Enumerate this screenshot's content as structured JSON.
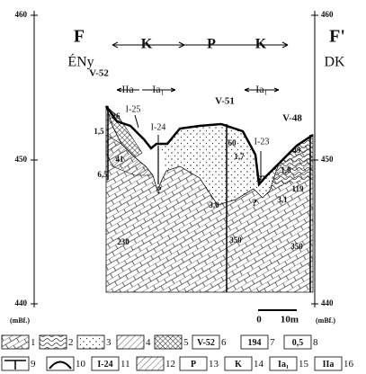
{
  "axis_left": {
    "ticks": [
      "460",
      "450",
      "440"
    ],
    "unit": "(mBf.)"
  },
  "axis_right": {
    "ticks": [
      "460",
      "450",
      "440"
    ],
    "unit": "(mBf.)"
  },
  "section": {
    "start": "F",
    "start_direction": "ÉNy",
    "end": "F'",
    "end_direction": "DK"
  },
  "zones": [
    "K",
    "P",
    "K"
  ],
  "units": [
    "IIa",
    "Ia₁",
    "Ia₁"
  ],
  "wells": [
    {
      "name": "V-52",
      "values": [
        "1,5",
        "26",
        "41",
        "6,5",
        "230"
      ]
    },
    {
      "name": "V-51",
      "values": [
        "60",
        "1,7",
        "67",
        "3,0",
        "350"
      ]
    },
    {
      "name": "V-48",
      "values": [
        "49",
        "1,8",
        "119",
        "3,1",
        "350"
      ]
    }
  ],
  "sinkholes": [
    "I-25",
    "I-24",
    "I-23"
  ],
  "unknown": [
    "?",
    "?"
  ],
  "scale": [
    "0",
    "10m"
  ],
  "legend": [
    {
      "number": "1"
    },
    {
      "number": "2"
    },
    {
      "number": "3"
    },
    {
      "number": "4"
    },
    {
      "number": "5"
    },
    {
      "symbol": "V-52",
      "number": "6"
    },
    {
      "symbol": "194",
      "number": "7"
    },
    {
      "symbol": "0,5",
      "number": "8"
    },
    {
      "number": "9"
    },
    {
      "number": "10"
    },
    {
      "symbol": "I-24",
      "number": "11"
    },
    {
      "number": "12"
    },
    {
      "symbol": "P",
      "number": "13"
    },
    {
      "symbol": "K",
      "number": "14"
    },
    {
      "symbol": "Ia₁",
      "number": "15"
    },
    {
      "symbol": "IIa",
      "number": "16"
    }
  ]
}
